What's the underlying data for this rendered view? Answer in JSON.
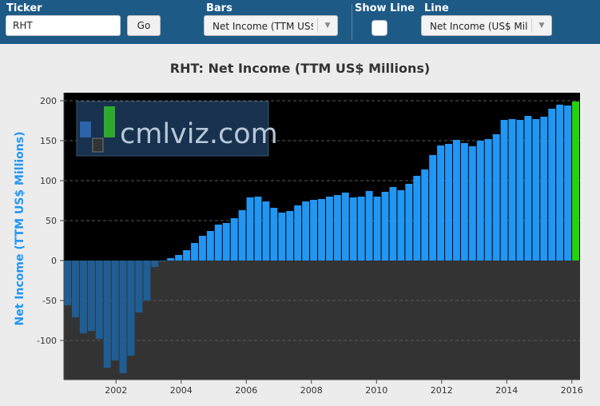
{
  "controls": {
    "ticker_label": "Ticker",
    "ticker_value": "RHT",
    "go_label": "Go",
    "bars_label": "Bars",
    "bars_value": "Net Income (TTM US$ Millions)",
    "show_line_label": "Show Line",
    "line_label": "Line",
    "line_value": "Net Income (US$ Millions)"
  },
  "watermark": {
    "text": "cmlviz.com"
  },
  "colors": {
    "topbar": "#1e5a86",
    "bar_positive": "#2196f3",
    "bar_negative": "#1f5e94",
    "bar_latest": "#22d40c",
    "plot_bg_positive": "#000000",
    "plot_bg_negative": "#333333",
    "ylabel": "#2196f3"
  },
  "chart_data": {
    "type": "bar",
    "title": "RHT: Net Income (TTM US$ Millions)",
    "ylabel": "Net Income (TTM US$ Millions)",
    "xlabel": "",
    "ylim": [
      -145,
      205
    ],
    "yticks": [
      200,
      150,
      100,
      50,
      0,
      -50,
      -100
    ],
    "xticks": [
      "2002",
      "2004",
      "2006",
      "2008",
      "2010",
      "2012",
      "2014",
      "2016"
    ],
    "grid": true,
    "series": [
      {
        "values": [
          -56,
          -71,
          -91,
          -88,
          -98,
          -134,
          -125,
          -141,
          -119,
          -65,
          -50,
          -8,
          0,
          3,
          7,
          13,
          22,
          31,
          37,
          45,
          47,
          53,
          63,
          79,
          80,
          74,
          66,
          60,
          62,
          69,
          74,
          76,
          77,
          80,
          82,
          85,
          79,
          80,
          87,
          80,
          86,
          92,
          88,
          96,
          106,
          114,
          132,
          144,
          146,
          151,
          147,
          143,
          150,
          152,
          158,
          176,
          177,
          176,
          181,
          177,
          180,
          190,
          195,
          194,
          199
        ]
      }
    ]
  }
}
